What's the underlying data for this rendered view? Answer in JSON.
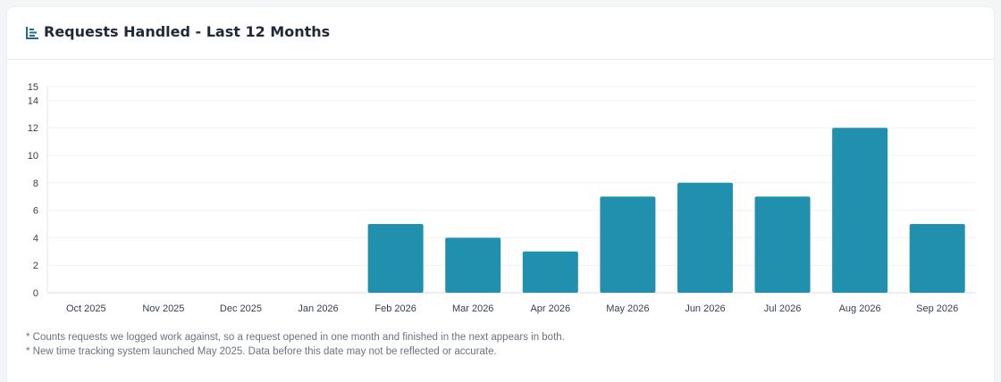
{
  "card": {
    "title": "Requests Handled - Last 12 Months",
    "title_icon": "bar-chart-icon",
    "accent": "#2190ae"
  },
  "chart_data": {
    "type": "bar",
    "categories": [
      "Oct 2025",
      "Nov 2025",
      "Dec 2025",
      "Jan 2026",
      "Feb 2026",
      "Mar 2026",
      "Apr 2026",
      "May 2026",
      "Jun 2026",
      "Jul 2026",
      "Aug 2026",
      "Sep 2026"
    ],
    "values": [
      0,
      0,
      0,
      0,
      5,
      4,
      3,
      7,
      8,
      7,
      12,
      5
    ],
    "yticks": [
      0,
      2,
      4,
      6,
      8,
      10,
      12,
      14,
      15
    ],
    "ylim": [
      0,
      15
    ],
    "grid": true,
    "bar_color": "#2190ae",
    "title": "Requests Handled - Last 12 Months",
    "xlabel": "",
    "ylabel": ""
  },
  "notes": [
    "* Counts requests we logged work against, so a request opened in one month and finished in the next appears in both.",
    "* New time tracking system launched May 2025. Data before this date may not be reflected or accurate."
  ]
}
